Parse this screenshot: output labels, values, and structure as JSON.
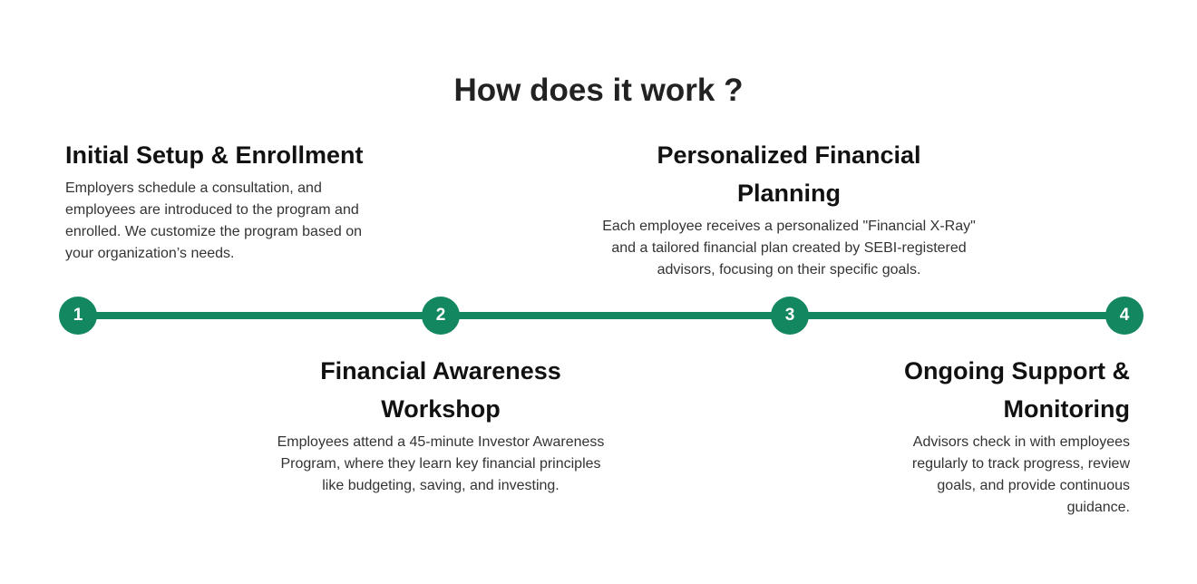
{
  "title": "How does it work ?",
  "colors": {
    "accent": "#13875f",
    "heading": "#222222",
    "body_text": "#333333"
  },
  "steps": [
    {
      "number": "1",
      "title": "Initial Setup & Enrollment",
      "description": "Employers schedule a consultation, and employees are introduced to the program and enrolled. We customize the program based on your organization’s needs."
    },
    {
      "number": "2",
      "title": "Financial Awareness Workshop",
      "description": "Employees attend a 45-minute Investor Awareness Program, where they learn key financial principles like budgeting, saving, and investing."
    },
    {
      "number": "3",
      "title": "Personalized Financial Planning",
      "description": "Each employee receives a personalized \"Financial X-Ray\" and a tailored financial plan created by SEBI-registered advisors, focusing on their specific goals."
    },
    {
      "number": "4",
      "title": "Ongoing Support & Monitoring",
      "description": "Advisors check in with employees regularly to track progress, review goals, and provide continuous guidance."
    }
  ]
}
